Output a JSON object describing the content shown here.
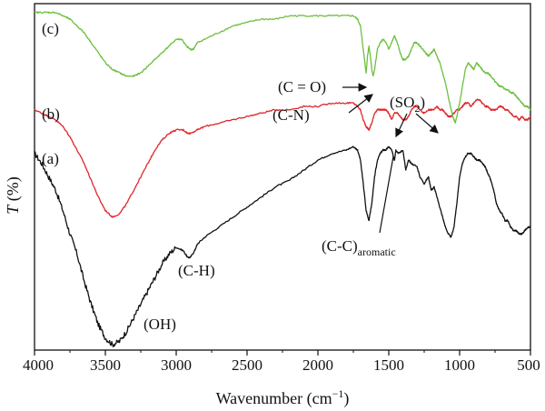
{
  "chart_data": {
    "type": "line",
    "xlabel": "Wavenumber (cm",
    "xlabel_sup": "−1",
    "xlabel_close": ")",
    "ylabel_italic": "T",
    "ylabel_rest": " (%)",
    "xlim": [
      4000,
      500
    ],
    "x_axis_reversed": true,
    "ylim": [
      0,
      100
    ],
    "y_ticks_shown": false,
    "grid": false,
    "xticks": [
      4000,
      3500,
      3000,
      2500,
      2000,
      1500,
      1000,
      500
    ],
    "xtick_labels": [
      "4000",
      "3500",
      "3000",
      "2500",
      "2000",
      "1500",
      "1000",
      "500"
    ],
    "series": [
      {
        "name": "(a)",
        "color": "#111111",
        "points": [
          [
            4000,
            57
          ],
          [
            3950,
            54
          ],
          [
            3900,
            50
          ],
          [
            3850,
            46
          ],
          [
            3800,
            40
          ],
          [
            3750,
            33
          ],
          [
            3700,
            27
          ],
          [
            3650,
            19
          ],
          [
            3600,
            12
          ],
          [
            3550,
            6
          ],
          [
            3500,
            2
          ],
          [
            3450,
            0
          ],
          [
            3400,
            1
          ],
          [
            3350,
            4
          ],
          [
            3300,
            8
          ],
          [
            3250,
            12
          ],
          [
            3200,
            16
          ],
          [
            3150,
            20
          ],
          [
            3100,
            24
          ],
          [
            3050,
            27
          ],
          [
            3000,
            29
          ],
          [
            2950,
            28
          ],
          [
            2920,
            26
          ],
          [
            2900,
            26
          ],
          [
            2870,
            28
          ],
          [
            2850,
            30
          ],
          [
            2800,
            32
          ],
          [
            2700,
            35
          ],
          [
            2600,
            38
          ],
          [
            2500,
            41
          ],
          [
            2400,
            44
          ],
          [
            2300,
            47
          ],
          [
            2200,
            49
          ],
          [
            2100,
            52
          ],
          [
            2000,
            55
          ],
          [
            1900,
            57
          ],
          [
            1800,
            58
          ],
          [
            1750,
            59
          ],
          [
            1720,
            58
          ],
          [
            1700,
            55
          ],
          [
            1680,
            48
          ],
          [
            1660,
            40
          ],
          [
            1640,
            37
          ],
          [
            1620,
            42
          ],
          [
            1600,
            50
          ],
          [
            1580,
            55
          ],
          [
            1560,
            57
          ],
          [
            1540,
            58
          ],
          [
            1520,
            58
          ],
          [
            1500,
            59
          ],
          [
            1480,
            58
          ],
          [
            1460,
            55
          ],
          [
            1450,
            58
          ],
          [
            1430,
            57
          ],
          [
            1400,
            58
          ],
          [
            1380,
            52
          ],
          [
            1360,
            55
          ],
          [
            1340,
            54
          ],
          [
            1300,
            53
          ],
          [
            1280,
            50
          ],
          [
            1250,
            48
          ],
          [
            1220,
            50
          ],
          [
            1200,
            46
          ],
          [
            1180,
            47
          ],
          [
            1160,
            44
          ],
          [
            1140,
            41
          ],
          [
            1120,
            38
          ],
          [
            1100,
            35
          ],
          [
            1080,
            33
          ],
          [
            1060,
            32
          ],
          [
            1040,
            35
          ],
          [
            1020,
            42
          ],
          [
            1000,
            50
          ],
          [
            980,
            54
          ],
          [
            960,
            56
          ],
          [
            940,
            57
          ],
          [
            920,
            57
          ],
          [
            900,
            56
          ],
          [
            880,
            55
          ],
          [
            860,
            55
          ],
          [
            840,
            54
          ],
          [
            820,
            53
          ],
          [
            800,
            51
          ],
          [
            780,
            49
          ],
          [
            760,
            46
          ],
          [
            740,
            42
          ],
          [
            720,
            40
          ],
          [
            700,
            39
          ],
          [
            680,
            37
          ],
          [
            660,
            37
          ],
          [
            640,
            35
          ],
          [
            620,
            34
          ],
          [
            600,
            34
          ],
          [
            580,
            33
          ],
          [
            560,
            33
          ],
          [
            540,
            34
          ],
          [
            520,
            35
          ],
          [
            500,
            35
          ]
        ]
      },
      {
        "name": "(b)",
        "color": "#e0262a",
        "points": [
          [
            4000,
            70
          ],
          [
            3950,
            69
          ],
          [
            3900,
            68
          ],
          [
            3850,
            67
          ],
          [
            3800,
            65
          ],
          [
            3750,
            62
          ],
          [
            3700,
            58
          ],
          [
            3650,
            54
          ],
          [
            3600,
            49
          ],
          [
            3550,
            44
          ],
          [
            3500,
            40
          ],
          [
            3450,
            38
          ],
          [
            3400,
            39
          ],
          [
            3350,
            42
          ],
          [
            3300,
            46
          ],
          [
            3250,
            50
          ],
          [
            3200,
            54
          ],
          [
            3150,
            58
          ],
          [
            3100,
            61
          ],
          [
            3050,
            63
          ],
          [
            3000,
            64
          ],
          [
            2950,
            64
          ],
          [
            2920,
            63
          ],
          [
            2900,
            63
          ],
          [
            2850,
            64
          ],
          [
            2800,
            65
          ],
          [
            2700,
            66
          ],
          [
            2600,
            67
          ],
          [
            2500,
            68
          ],
          [
            2400,
            69
          ],
          [
            2300,
            70
          ],
          [
            2200,
            70
          ],
          [
            2100,
            71
          ],
          [
            2000,
            71
          ],
          [
            1900,
            72
          ],
          [
            1800,
            72
          ],
          [
            1750,
            72
          ],
          [
            1720,
            71
          ],
          [
            1700,
            70
          ],
          [
            1680,
            67
          ],
          [
            1660,
            65
          ],
          [
            1640,
            64
          ],
          [
            1620,
            66
          ],
          [
            1600,
            69
          ],
          [
            1580,
            70
          ],
          [
            1560,
            70
          ],
          [
            1540,
            70
          ],
          [
            1520,
            70
          ],
          [
            1500,
            69
          ],
          [
            1480,
            67
          ],
          [
            1460,
            69
          ],
          [
            1440,
            69
          ],
          [
            1420,
            68
          ],
          [
            1400,
            67
          ],
          [
            1380,
            67
          ],
          [
            1360,
            68
          ],
          [
            1340,
            70
          ],
          [
            1320,
            71
          ],
          [
            1300,
            71
          ],
          [
            1280,
            70
          ],
          [
            1250,
            69
          ],
          [
            1220,
            70
          ],
          [
            1200,
            70
          ],
          [
            1180,
            70
          ],
          [
            1160,
            71
          ],
          [
            1140,
            70
          ],
          [
            1120,
            70
          ],
          [
            1100,
            69
          ],
          [
            1080,
            68
          ],
          [
            1060,
            68
          ],
          [
            1040,
            69
          ],
          [
            1020,
            70
          ],
          [
            1000,
            70
          ],
          [
            980,
            71
          ],
          [
            960,
            72
          ],
          [
            940,
            72
          ],
          [
            920,
            71
          ],
          [
            900,
            72
          ],
          [
            880,
            73
          ],
          [
            860,
            73
          ],
          [
            840,
            72
          ],
          [
            820,
            71
          ],
          [
            800,
            71
          ],
          [
            780,
            70
          ],
          [
            760,
            70
          ],
          [
            740,
            70
          ],
          [
            720,
            71
          ],
          [
            700,
            71
          ],
          [
            680,
            70
          ],
          [
            660,
            70
          ],
          [
            640,
            69
          ],
          [
            620,
            68
          ],
          [
            600,
            68
          ],
          [
            580,
            67
          ],
          [
            560,
            68
          ],
          [
            540,
            67
          ],
          [
            520,
            67
          ],
          [
            500,
            68
          ]
        ]
      },
      {
        "name": "(c)",
        "color": "#6dbf3f",
        "points": [
          [
            4000,
            99
          ],
          [
            3950,
            99
          ],
          [
            3900,
            99
          ],
          [
            3850,
            99
          ],
          [
            3800,
            98
          ],
          [
            3750,
            97
          ],
          [
            3700,
            95
          ],
          [
            3650,
            93
          ],
          [
            3600,
            90
          ],
          [
            3550,
            87
          ],
          [
            3500,
            84
          ],
          [
            3450,
            82
          ],
          [
            3400,
            81
          ],
          [
            3350,
            80
          ],
          [
            3300,
            80
          ],
          [
            3250,
            81
          ],
          [
            3200,
            83
          ],
          [
            3150,
            85
          ],
          [
            3100,
            87
          ],
          [
            3050,
            89
          ],
          [
            3000,
            91
          ],
          [
            2960,
            91
          ],
          [
            2930,
            89
          ],
          [
            2900,
            88
          ],
          [
            2880,
            88
          ],
          [
            2850,
            90
          ],
          [
            2800,
            91
          ],
          [
            2700,
            93
          ],
          [
            2600,
            95
          ],
          [
            2500,
            96
          ],
          [
            2400,
            97
          ],
          [
            2300,
            97
          ],
          [
            2200,
            98
          ],
          [
            2100,
            98
          ],
          [
            2000,
            98
          ],
          [
            1900,
            98
          ],
          [
            1800,
            98
          ],
          [
            1750,
            98
          ],
          [
            1720,
            97
          ],
          [
            1700,
            95
          ],
          [
            1680,
            88
          ],
          [
            1660,
            81
          ],
          [
            1650,
            86
          ],
          [
            1640,
            89
          ],
          [
            1630,
            86
          ],
          [
            1620,
            82
          ],
          [
            1610,
            80
          ],
          [
            1600,
            82
          ],
          [
            1580,
            88
          ],
          [
            1560,
            90
          ],
          [
            1540,
            91
          ],
          [
            1520,
            90
          ],
          [
            1500,
            88
          ],
          [
            1480,
            90
          ],
          [
            1460,
            92
          ],
          [
            1440,
            90
          ],
          [
            1420,
            87
          ],
          [
            1400,
            85
          ],
          [
            1380,
            85
          ],
          [
            1360,
            86
          ],
          [
            1340,
            88
          ],
          [
            1320,
            90
          ],
          [
            1300,
            90
          ],
          [
            1280,
            89
          ],
          [
            1260,
            88
          ],
          [
            1240,
            87
          ],
          [
            1220,
            86
          ],
          [
            1200,
            87
          ],
          [
            1180,
            88
          ],
          [
            1160,
            86
          ],
          [
            1140,
            84
          ],
          [
            1120,
            81
          ],
          [
            1100,
            78
          ],
          [
            1080,
            74
          ],
          [
            1060,
            70
          ],
          [
            1040,
            67
          ],
          [
            1030,
            66
          ],
          [
            1020,
            68
          ],
          [
            1000,
            72
          ],
          [
            980,
            77
          ],
          [
            960,
            82
          ],
          [
            940,
            84
          ],
          [
            920,
            83
          ],
          [
            900,
            82
          ],
          [
            880,
            84
          ],
          [
            860,
            83
          ],
          [
            840,
            82
          ],
          [
            820,
            81
          ],
          [
            800,
            81
          ],
          [
            780,
            80
          ],
          [
            760,
            79
          ],
          [
            740,
            78
          ],
          [
            720,
            77
          ],
          [
            700,
            77
          ],
          [
            680,
            76
          ],
          [
            660,
            76
          ],
          [
            640,
            75
          ],
          [
            620,
            75
          ],
          [
            600,
            74
          ],
          [
            580,
            73
          ],
          [
            560,
            72
          ],
          [
            540,
            71
          ],
          [
            520,
            71
          ],
          [
            500,
            70
          ]
        ]
      }
    ],
    "annotations": [
      {
        "id": "c",
        "text": "(c)",
        "wn": 3920,
        "t": 97
      },
      {
        "id": "b",
        "text": "(b)",
        "wn": 3920,
        "t": 74
      },
      {
        "id": "a",
        "text": "(a)",
        "wn": 3920,
        "t": 62
      },
      {
        "id": "oh",
        "text": "(OH)",
        "wn": 3250,
        "t": 4
      },
      {
        "id": "ch",
        "text": "(C-H)",
        "wn": 2850,
        "t": 22
      },
      {
        "id": "co",
        "text": "(C = O)",
        "wn": 1870,
        "t": 86
      },
      {
        "id": "cn",
        "text": "(C-N)",
        "wn": 2060,
        "t": 77
      },
      {
        "id": "so2",
        "text": "(SO",
        "sub": "2",
        "close": ")",
        "wn": 1390,
        "t": 81
      },
      {
        "id": "cc",
        "text": "(C-C)",
        "sub": "aromatic",
        "wn": 1830,
        "t": 32
      }
    ]
  }
}
